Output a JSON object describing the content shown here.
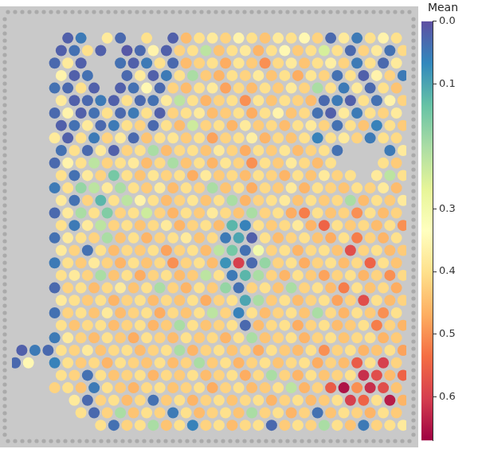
{
  "chart_data": {
    "type": "scatter",
    "tick_labels": false,
    "cells": [
      [
        null,
        null,
        null,
        null,
        0.02,
        0.05,
        null,
        0.38,
        0.03,
        null,
        0.4,
        null,
        0.02,
        0.45,
        0.4,
        0.38,
        0.42,
        0.36,
        0.4,
        0.44,
        0.38,
        0.4,
        0.35,
        0.42,
        0.03,
        0.38,
        0.05,
        0.4,
        0.36,
        0.4
      ],
      [
        null,
        null,
        null,
        0.02,
        0.04,
        0.4,
        0.02,
        null,
        0.01,
        0.03,
        0.36,
        0.02,
        0.42,
        0.4,
        0.22,
        0.44,
        0.4,
        0.38,
        0.46,
        0.4,
        0.35,
        0.43,
        0.4,
        0.25,
        0.4,
        0.03,
        0.42,
        0.38,
        0.04,
        0.41
      ],
      [
        null,
        null,
        null,
        0.03,
        0.38,
        0.02,
        null,
        null,
        0.04,
        0.02,
        0.05,
        0.4,
        0.03,
        0.45,
        0.42,
        0.4,
        0.47,
        0.39,
        0.43,
        0.5,
        0.41,
        0.38,
        0.44,
        0.4,
        0.37,
        0.42,
        0.05,
        0.4,
        0.03,
        0.38
      ],
      [
        null,
        null,
        null,
        0.36,
        0.02,
        0.04,
        null,
        null,
        0.03,
        0.38,
        0.02,
        0.05,
        0.4,
        0.2,
        0.43,
        0.46,
        0.4,
        0.42,
        0.38,
        0.44,
        0.4,
        0.47,
        0.39,
        0.42,
        0.04,
        0.4,
        0.02,
        0.36,
        0.42,
        0.05
      ],
      [
        null,
        null,
        null,
        0.04,
        0.03,
        0.4,
        0.02,
        null,
        0.02,
        0.04,
        0.35,
        0.03,
        0.42,
        0.45,
        0.4,
        0.38,
        0.48,
        0.41,
        0.45,
        0.4,
        0.43,
        0.38,
        0.42,
        0.2,
        0.4,
        0.05,
        0.38,
        0.03,
        0.4,
        0.44
      ],
      [
        null,
        null,
        null,
        0.38,
        0.02,
        0.03,
        0.05,
        0.02,
        0.4,
        0.03,
        0.04,
        0.38,
        0.22,
        0.4,
        0.46,
        0.42,
        0.4,
        0.5,
        0.39,
        0.44,
        0.4,
        0.42,
        0.45,
        0.03,
        0.05,
        0.02,
        0.4,
        0.04,
        0.36,
        0.42
      ],
      [
        null,
        null,
        null,
        0.03,
        0.36,
        0.02,
        0.04,
        0.4,
        0.03,
        0.05,
        0.4,
        0.02,
        0.42,
        0.4,
        0.38,
        0.45,
        0.43,
        0.4,
        0.47,
        0.4,
        0.36,
        0.44,
        0.41,
        0.04,
        0.02,
        0.38,
        0.05,
        0.4,
        0.42,
        0.38
      ],
      [
        null,
        null,
        null,
        0.02,
        0.04,
        0.38,
        0.03,
        0.05,
        0.4,
        0.42,
        0.03,
        0.4,
        0.45,
        0.24,
        0.42,
        0.4,
        0.46,
        0.38,
        0.43,
        0.41,
        0.45,
        0.4,
        0.38,
        0.42,
        0.04,
        0.4,
        0.44,
        0.06,
        0.4,
        0.43
      ],
      [
        null,
        null,
        null,
        0.38,
        0.02,
        0.4,
        0.05,
        0.42,
        0.38,
        0.03,
        0.44,
        0.4,
        0.39,
        0.43,
        0.4,
        0.48,
        0.42,
        0.4,
        0.37,
        0.46,
        0.41,
        0.44,
        0.4,
        0.06,
        0.4,
        0.38,
        0.42,
        0.05,
        0.4,
        0.41
      ],
      [
        null,
        null,
        null,
        0.04,
        0.4,
        0.03,
        0.38,
        0.02,
        0.42,
        0.4,
        0.2,
        0.45,
        0.41,
        0.4,
        0.44,
        0.38,
        0.42,
        0.47,
        0.4,
        0.43,
        0.39,
        0.45,
        0.42,
        0.4,
        0.04,
        null,
        null,
        null,
        0.05,
        0.38
      ],
      [
        null,
        null,
        null,
        0.03,
        0.36,
        0.4,
        0.22,
        0.42,
        0.4,
        0.38,
        0.45,
        0.41,
        0.2,
        0.44,
        0.4,
        0.46,
        0.39,
        0.42,
        0.5,
        0.4,
        0.43,
        0.38,
        0.41,
        0.45,
        0.4,
        null,
        null,
        null,
        0.4,
        0.43
      ],
      [
        null,
        null,
        null,
        0.4,
        0.04,
        0.38,
        0.42,
        0.15,
        0.4,
        0.44,
        0.39,
        0.42,
        0.4,
        0.47,
        0.38,
        0.43,
        0.41,
        0.45,
        0.4,
        0.42,
        0.46,
        0.4,
        0.44,
        0.38,
        0.42,
        0.4,
        null,
        0.38,
        0.22,
        0.4
      ],
      [
        null,
        null,
        null,
        0.05,
        0.4,
        0.18,
        0.22,
        0.38,
        0.2,
        0.4,
        0.43,
        0.38,
        0.45,
        0.4,
        0.42,
        0.2,
        0.44,
        0.4,
        0.47,
        0.41,
        0.43,
        0.38,
        0.46,
        0.4,
        0.42,
        0.44,
        0.4,
        0.42,
        0.38,
        0.45
      ],
      [
        null,
        null,
        null,
        0.38,
        0.04,
        0.42,
        0.12,
        0.4,
        0.22,
        0.36,
        0.4,
        0.45,
        0.42,
        0.39,
        0.44,
        0.4,
        0.2,
        0.46,
        0.42,
        0.4,
        0.38,
        0.44,
        0.4,
        0.43,
        0.41,
        0.2,
        0.45,
        0.4,
        0.43,
        0.38
      ],
      [
        null,
        null,
        null,
        0.03,
        0.38,
        0.2,
        0.4,
        0.16,
        0.42,
        0.4,
        0.24,
        0.42,
        0.46,
        0.4,
        0.43,
        0.38,
        0.41,
        0.44,
        0.2,
        0.42,
        0.4,
        0.47,
        0.52,
        0.4,
        0.44,
        0.42,
        0.5,
        0.4,
        0.45,
        0.42
      ],
      [
        null,
        null,
        null,
        0.4,
        0.05,
        0.38,
        0.22,
        0.42,
        0.4,
        0.44,
        0.41,
        0.38,
        0.46,
        0.42,
        0.4,
        0.45,
        0.12,
        0.06,
        0.4,
        0.43,
        0.41,
        0.38,
        0.46,
        0.55,
        0.4,
        0.43,
        0.41,
        0.45,
        0.4,
        0.5
      ],
      [
        null,
        null,
        null,
        0.04,
        0.38,
        0.4,
        0.42,
        0.2,
        0.44,
        0.4,
        0.46,
        0.42,
        0.4,
        0.38,
        0.44,
        0.41,
        0.05,
        0.1,
        0.02,
        0.4,
        0.45,
        0.42,
        0.4,
        0.44,
        0.47,
        0.4,
        0.52,
        0.42,
        0.46,
        0.4
      ],
      [
        null,
        null,
        null,
        0.38,
        0.42,
        0.04,
        0.4,
        0.45,
        0.41,
        0.43,
        0.4,
        0.48,
        0.42,
        0.4,
        0.45,
        0.22,
        0.15,
        0.04,
        0.3,
        0.42,
        0.4,
        0.46,
        0.41,
        0.4,
        0.44,
        0.58,
        0.42,
        0.4,
        0.45,
        0.43
      ],
      [
        null,
        null,
        null,
        0.05,
        0.4,
        0.43,
        0.38,
        0.42,
        0.46,
        0.4,
        0.44,
        0.41,
        0.5,
        0.42,
        0.4,
        0.45,
        0.08,
        0.6,
        0.03,
        0.18,
        0.42,
        0.4,
        0.47,
        0.42,
        0.4,
        0.45,
        0.41,
        0.55,
        0.4,
        0.44
      ],
      [
        null,
        null,
        null,
        0.4,
        0.38,
        0.42,
        0.2,
        0.44,
        0.4,
        0.47,
        0.42,
        0.4,
        0.45,
        0.43,
        0.22,
        0.4,
        0.05,
        0.12,
        0.2,
        0.42,
        0.46,
        0.4,
        0.43,
        0.48,
        0.42,
        0.4,
        0.46,
        0.42,
        0.5,
        0.41
      ],
      [
        null,
        null,
        null,
        0.03,
        0.42,
        0.4,
        0.45,
        0.41,
        0.38,
        0.44,
        0.4,
        0.2,
        0.42,
        0.46,
        0.4,
        0.43,
        0.18,
        0.04,
        0.42,
        0.4,
        0.44,
        0.2,
        0.42,
        0.4,
        0.45,
        0.52,
        0.4,
        0.44,
        0.41,
        0.47
      ],
      [
        null,
        null,
        null,
        0.38,
        0.4,
        0.43,
        0.4,
        0.46,
        0.42,
        0.4,
        0.45,
        0.41,
        0.44,
        0.4,
        0.47,
        0.42,
        0.4,
        0.1,
        0.2,
        0.43,
        0.4,
        0.45,
        0.42,
        0.4,
        0.48,
        0.42,
        0.58,
        0.4,
        0.45,
        0.42
      ],
      [
        null,
        null,
        null,
        0.04,
        0.42,
        0.4,
        0.44,
        0.38,
        0.45,
        0.42,
        0.4,
        0.47,
        0.41,
        0.44,
        0.4,
        0.22,
        0.42,
        0.06,
        0.4,
        0.45,
        0.42,
        0.4,
        0.44,
        0.2,
        0.41,
        0.46,
        0.4,
        0.43,
        0.5,
        0.4
      ],
      [
        null,
        null,
        null,
        0.4,
        0.44,
        0.41,
        0.4,
        0.45,
        0.42,
        0.4,
        0.46,
        0.43,
        0.2,
        0.4,
        0.44,
        0.42,
        0.4,
        0.03,
        0.45,
        0.41,
        0.4,
        0.47,
        0.42,
        0.4,
        0.45,
        0.43,
        0.4,
        0.52,
        0.42,
        0.46
      ],
      [
        null,
        null,
        null,
        0.05,
        0.38,
        0.42,
        0.45,
        0.4,
        0.43,
        0.47,
        0.4,
        0.42,
        0.45,
        0.4,
        0.43,
        0.41,
        0.46,
        0.4,
        0.2,
        0.44,
        0.42,
        0.4,
        0.46,
        0.42,
        0.4,
        0.44,
        0.41,
        0.4,
        0.46,
        0.43
      ],
      [
        0.02,
        0.05,
        0.03,
        0.4,
        0.42,
        0.38,
        0.44,
        0.41,
        0.4,
        0.45,
        0.42,
        0.4,
        0.2,
        0.46,
        0.42,
        0.4,
        0.44,
        0.41,
        0.47,
        0.4,
        0.43,
        0.45,
        0.4,
        0.5,
        0.42,
        0.4,
        0.46,
        0.44,
        0.4,
        0.48
      ],
      [
        0.03,
        0.35,
        null,
        0.06,
        0.4,
        0.43,
        0.41,
        0.46,
        0.4,
        0.42,
        0.44,
        0.4,
        0.45,
        0.42,
        0.2,
        0.43,
        0.4,
        0.46,
        0.42,
        0.4,
        0.44,
        0.41,
        0.4,
        0.47,
        0.42,
        0.45,
        0.56,
        0.4,
        0.6,
        0.42
      ],
      [
        null,
        null,
        null,
        0.4,
        0.42,
        0.04,
        0.4,
        0.44,
        0.42,
        0.4,
        0.46,
        0.41,
        0.43,
        0.4,
        0.45,
        0.42,
        0.4,
        0.47,
        0.41,
        0.2,
        0.42,
        0.46,
        0.4,
        0.44,
        0.42,
        0.4,
        0.62,
        0.58,
        0.45,
        0.55
      ],
      [
        null,
        null,
        null,
        0.42,
        0.4,
        0.44,
        0.05,
        0.4,
        0.43,
        0.46,
        0.41,
        0.4,
        0.44,
        0.42,
        0.4,
        0.47,
        0.42,
        0.4,
        0.45,
        0.43,
        0.4,
        0.22,
        0.46,
        0.42,
        0.56,
        0.65,
        0.5,
        0.62,
        0.58,
        0.44
      ],
      [
        null,
        null,
        null,
        null,
        0.38,
        0.03,
        0.42,
        0.4,
        0.45,
        0.41,
        0.04,
        0.43,
        0.4,
        0.46,
        0.42,
        0.4,
        0.44,
        0.41,
        0.4,
        0.46,
        0.42,
        0.4,
        0.45,
        0.43,
        0.4,
        0.6,
        0.55,
        0.4,
        0.64,
        0.46
      ],
      [
        null,
        null,
        null,
        null,
        null,
        0.4,
        0.03,
        0.42,
        0.2,
        0.44,
        0.4,
        0.42,
        0.05,
        0.4,
        0.45,
        0.42,
        0.4,
        0.44,
        0.2,
        0.42,
        0.4,
        0.46,
        0.42,
        0.04,
        0.44,
        0.4,
        0.42,
        0.46,
        0.4,
        0.43
      ],
      [
        null,
        null,
        null,
        null,
        null,
        null,
        0.4,
        0.04,
        0.42,
        0.4,
        0.2,
        0.44,
        0.4,
        0.06,
        0.42,
        0.4,
        0.45,
        0.41,
        0.4,
        0.03,
        0.43,
        0.4,
        0.42,
        0.2,
        0.4,
        0.44,
        0.05,
        0.42,
        0.4,
        0.38
      ]
    ],
    "colorbar": {
      "title": "Mean",
      "range": [
        0,
        0.67
      ],
      "ticks": [
        {
          "value": 0,
          "label": "0.0"
        },
        0.1,
        0.3,
        0.4,
        0.5,
        0.6
      ]
    }
  }
}
